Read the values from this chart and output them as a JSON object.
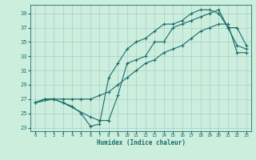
{
  "xlabel": "Humidex (Indice chaleur)",
  "background_color": "#cceedd",
  "grid_color": "#aacccc",
  "line_color": "#1a6b6b",
  "xlim": [
    -0.5,
    23.5
  ],
  "ylim": [
    22.5,
    40.2
  ],
  "xticks": [
    0,
    1,
    2,
    3,
    4,
    5,
    6,
    7,
    8,
    9,
    10,
    11,
    12,
    13,
    14,
    15,
    16,
    17,
    18,
    19,
    20,
    21,
    22,
    23
  ],
  "yticks": [
    23,
    25,
    27,
    29,
    31,
    33,
    35,
    37,
    39
  ],
  "line1_x": [
    0,
    1,
    2,
    3,
    4,
    5,
    6,
    7,
    8,
    9,
    10,
    11,
    12,
    13,
    14,
    15,
    16,
    17,
    18,
    19,
    20,
    21,
    22,
    23
  ],
  "line1_y": [
    26.5,
    27,
    27,
    26.5,
    26,
    25,
    23.2,
    23.5,
    30,
    32,
    34,
    35,
    35.5,
    36.5,
    37.5,
    37.5,
    38,
    39,
    39.5,
    39.5,
    39,
    37,
    34.5,
    34
  ],
  "line2_x": [
    0,
    1,
    2,
    3,
    4,
    5,
    6,
    7,
    8,
    9,
    10,
    11,
    12,
    13,
    14,
    15,
    16,
    17,
    18,
    19,
    20,
    21,
    22,
    23
  ],
  "line2_y": [
    26.5,
    27,
    27,
    27,
    27,
    27,
    27,
    27.5,
    28,
    29,
    30,
    31,
    32,
    32.5,
    33.5,
    34,
    34.5,
    35.5,
    36.5,
    37,
    37.5,
    37.5,
    33.5,
    33.5
  ],
  "line3_x": [
    0,
    2,
    3,
    6,
    7,
    8,
    9,
    10,
    11,
    12,
    13,
    14,
    15,
    16,
    17,
    18,
    19,
    20,
    21,
    22,
    23
  ],
  "line3_y": [
    26.5,
    27,
    26.5,
    24.5,
    24,
    24,
    27.5,
    32,
    32.5,
    33,
    35,
    35,
    37,
    37.5,
    38,
    38.5,
    39,
    39.5,
    37,
    37,
    34.5
  ]
}
